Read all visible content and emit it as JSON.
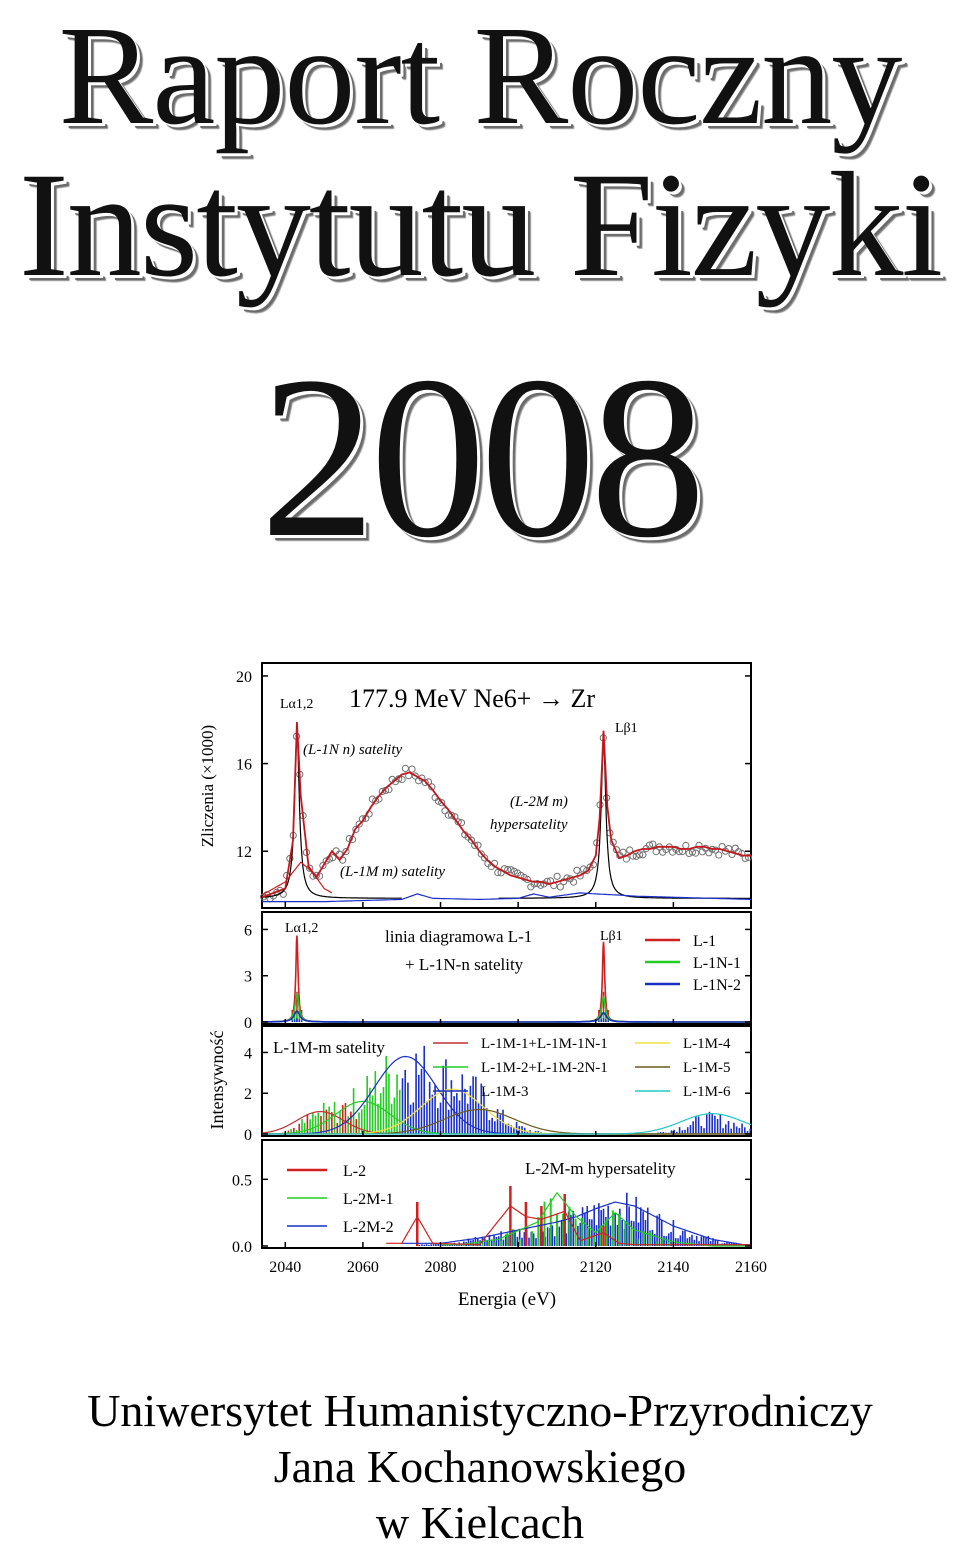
{
  "cover": {
    "title_line1": "Raport Roczny",
    "title_line2": "Instytutu Fizyki",
    "year": "2008",
    "footer_line1": "Uniwersytet Humanistyczno-Przyrodniczy",
    "footer_line2": "Jana Kochanowskiego",
    "footer_line3": "w Kielcach"
  },
  "chart_data": {
    "type": "line",
    "title": "177.9 MeV Ne6+ → Zr",
    "xlabel": "Energia (eV)",
    "x_ticks": [
      "2040",
      "2060",
      "2080",
      "2100",
      "2120",
      "2140",
      "2160"
    ],
    "xlim": [
      2034,
      2160
    ],
    "top_panel": {
      "ylabel": "Zliczenia (×1000)",
      "y_ticks": [
        "12",
        "16",
        "20"
      ],
      "ylim": [
        9.5,
        20.5
      ],
      "labels": {
        "la": "Lα1,2",
        "lb": "Lβ1",
        "sat1": "(L-1N n) satelity",
        "sat2": "(L-1M m) satelity",
        "hyp_a": "(L-2M m)",
        "hyp_b": "hypersatelity"
      },
      "curves": {
        "fit": {
          "x": [
            2034,
            2040,
            2042,
            2043,
            2044,
            2046,
            2048,
            2050,
            2052,
            2054,
            2056,
            2058,
            2060,
            2062,
            2064,
            2066,
            2068,
            2070,
            2072,
            2074,
            2076,
            2078,
            2080,
            2082,
            2084,
            2086,
            2088,
            2090,
            2092,
            2094,
            2096,
            2098,
            2100,
            2102,
            2104,
            2106,
            2108,
            2110,
            2112,
            2114,
            2116,
            2118,
            2120,
            2121,
            2122,
            2123,
            2124,
            2126,
            2128,
            2130,
            2132,
            2134,
            2136,
            2138,
            2140,
            2142,
            2144,
            2146,
            2148,
            2150,
            2152,
            2154,
            2156,
            2158,
            2160
          ],
          "y": [
            9.9,
            10.3,
            12.5,
            17.9,
            14.5,
            11.3,
            10.8,
            11.4,
            12.0,
            11.6,
            12.1,
            13.0,
            13.4,
            14.0,
            14.5,
            14.9,
            15.2,
            15.5,
            15.6,
            15.4,
            15.2,
            14.8,
            14.3,
            13.9,
            13.4,
            12.9,
            12.5,
            12.0,
            11.6,
            11.3,
            11.1,
            10.9,
            10.8,
            10.7,
            10.6,
            10.6,
            10.5,
            10.6,
            10.7,
            10.8,
            10.9,
            11.1,
            11.8,
            13.5,
            17.5,
            14.0,
            12.5,
            11.7,
            11.8,
            12.0,
            12.1,
            12.1,
            12.2,
            12.2,
            12.2,
            12.1,
            12.1,
            12.2,
            12.2,
            12.1,
            12.1,
            12.0,
            11.9,
            11.8,
            11.8
          ]
        },
        "lorentz_la": {
          "x0": 2043.0,
          "amp": 7.6,
          "w": 0.75,
          "base": 9.85
        },
        "lorentz_lb": {
          "x0": 2122.0,
          "amp": 7.1,
          "w": 0.75,
          "base": 9.85
        },
        "red_wing": {
          "x": [
            2034,
            2040,
            2044,
            2046,
            2048,
            2050,
            2052
          ],
          "y": [
            10.0,
            10.6,
            11.5,
            11.2,
            10.8,
            10.3,
            10.1
          ]
        },
        "blue_bg": {
          "x": [
            2034,
            2050,
            2060,
            2070,
            2074,
            2078,
            2090,
            2100,
            2104,
            2108,
            2112,
            2116,
            2120,
            2126,
            2130,
            2140,
            2150,
            2160
          ],
          "y": [
            9.7,
            9.7,
            9.75,
            9.8,
            10.05,
            9.85,
            9.8,
            9.85,
            10.05,
            9.9,
            10.0,
            10.1,
            10.05,
            10.0,
            9.95,
            9.9,
            9.85,
            9.8
          ]
        }
      }
    },
    "middle_panel_1": {
      "ylabel": "Intensywność",
      "y_ticks": [
        "0",
        "3",
        "6"
      ],
      "ylim": [
        0,
        7
      ],
      "labels": {
        "la": "Lα1,2",
        "lb": "Lβ1",
        "title_a": "linia diagramowa L-1",
        "title_b": "+ L-1N-n satelity"
      },
      "series": [
        {
          "name": "L-1",
          "color": "#d21f1f",
          "amplitudes": [
            5.6,
            5.2
          ],
          "width": 0.35
        },
        {
          "name": "L-1N-1",
          "color": "#22cc22",
          "amplitudes": [
            1.8,
            1.6
          ],
          "width": 0.6
        },
        {
          "name": "L-1N-2",
          "color": "#1a2fc8",
          "amplitudes": [
            0.7,
            0.6
          ],
          "width": 0.9
        }
      ],
      "peaks_x": [
        2043.0,
        2122.0
      ]
    },
    "middle_panel_2": {
      "y_ticks": [
        "0",
        "2",
        "4"
      ],
      "ylim": [
        0,
        5.2
      ],
      "labels": {
        "title": "L-1M-m satelity"
      },
      "series": [
        {
          "name": "L-1M-1+L-1M-1N-1",
          "color": "#c03030",
          "x0": 2049,
          "amp": 1.1,
          "w": 6
        },
        {
          "name": "L-1M-2+L-1M-2N-1",
          "color": "#22cc22",
          "x0": 2060,
          "amp": 1.6,
          "w": 7
        },
        {
          "name": "L-1M-3",
          "color": "#1a2fc8",
          "x0": 2071,
          "amp": 3.8,
          "w": 8
        },
        {
          "name": "L-1M-4",
          "color": "#f0e040",
          "x0": 2083,
          "amp": 2.2,
          "w": 8
        },
        {
          "name": "L-1M-5",
          "color": "#6b5a1a",
          "x0": 2090,
          "amp": 1.2,
          "w": 9
        },
        {
          "name": "L-1M-6",
          "color": "#22c8c8",
          "x0": 2150,
          "amp": 1.0,
          "w": 8
        }
      ]
    },
    "bottom_panel": {
      "y_ticks": [
        "0.0",
        "0.5"
      ],
      "ylim": [
        0,
        0.78
      ],
      "labels": {
        "title": "L-2M-m hypersatelity"
      },
      "series": [
        {
          "name": "L-2",
          "color": "#d21f1f"
        },
        {
          "name": "L-2M-1",
          "color": "#22cc22"
        },
        {
          "name": "L-2M-2",
          "color": "#1a2fc8"
        }
      ],
      "blue_envelope": {
        "x": [
          2080,
          2090,
          2100,
          2110,
          2115,
          2120,
          2125,
          2130,
          2140,
          2150,
          2158
        ],
        "y": [
          0.02,
          0.06,
          0.12,
          0.18,
          0.22,
          0.28,
          0.33,
          0.3,
          0.15,
          0.05,
          0.01
        ]
      },
      "green_envelope": {
        "x": [
          2085,
          2095,
          2105,
          2110,
          2115,
          2120,
          2125,
          2130,
          2140,
          2150
        ],
        "y": [
          0.01,
          0.05,
          0.18,
          0.4,
          0.22,
          0.1,
          0.25,
          0.12,
          0.03,
          0.0
        ]
      },
      "red_envelope": {
        "x": [
          2070,
          2074,
          2078,
          2090,
          2098,
          2102,
          2106,
          2112,
          2116,
          2122,
          2126,
          2130
        ],
        "y": [
          0.02,
          0.22,
          0.02,
          0.01,
          0.3,
          0.22,
          0.2,
          0.26,
          0.04,
          0.1,
          0.02,
          0.01
        ]
      }
    }
  }
}
